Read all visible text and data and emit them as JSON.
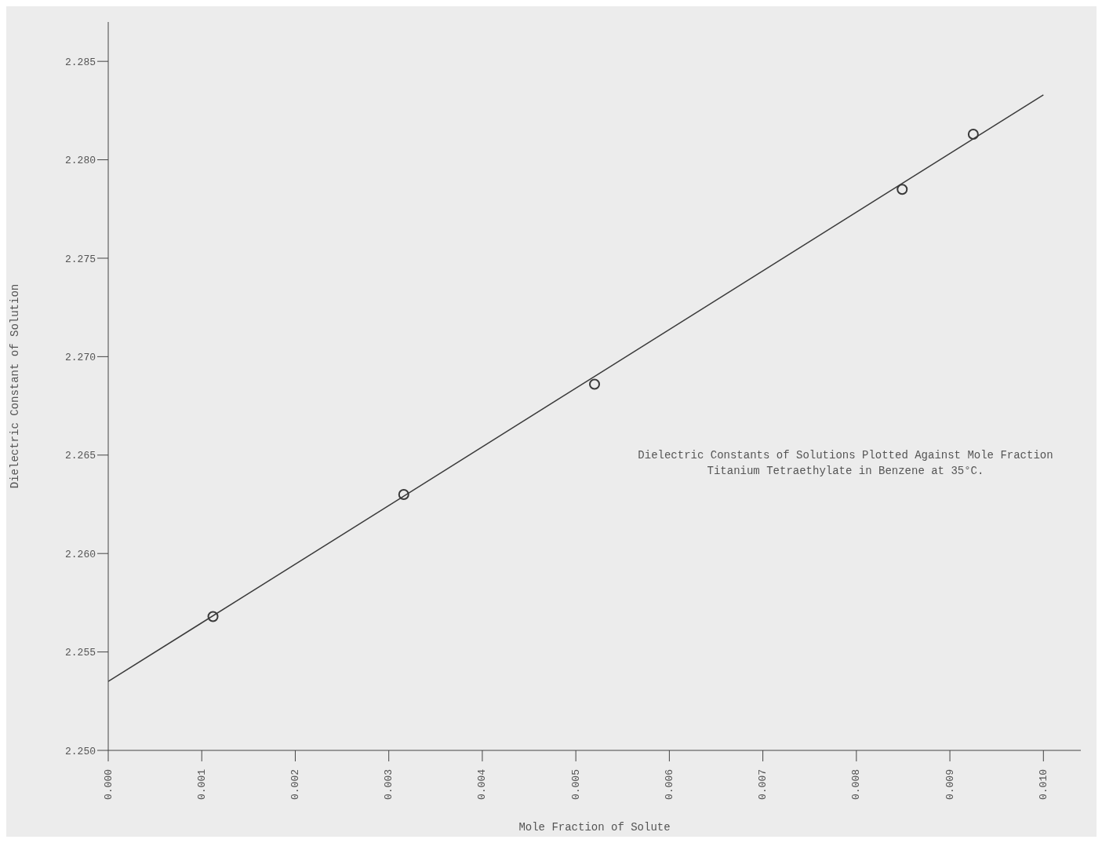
{
  "chart_data": {
    "type": "scatter",
    "xlabel": "Mole Fraction of Solute",
    "ylabel": "Dielectric Constant of Solution",
    "annotations": [
      "Dielectric Constants of Solutions Plotted Against Mole Fraction Titanium Tetraethylate in Benzene at 35°C."
    ],
    "series": [
      {
        "marker": "circle",
        "color": "#3a3a3a",
        "x": [
          0.00112,
          0.00316,
          0.0052,
          0.00849,
          0.00925
        ],
        "values": [
          2.2568,
          2.263,
          2.2686,
          2.2785,
          2.2813
        ]
      },
      {
        "type": "line",
        "color": "#3a3a3a",
        "x": [
          0,
          0.01
        ],
        "values": [
          2.2535,
          2.2833
        ]
      }
    ],
    "line_style": "solid",
    "xlim": [
      0,
      0.0104
    ],
    "ylim": [
      2.25,
      2.287
    ],
    "xticks": [
      {
        "value": 0,
        "label": "0.000"
      },
      {
        "value": 0.001,
        "label": "0.001"
      },
      {
        "value": 0.002,
        "label": "0.002"
      },
      {
        "value": 0.003,
        "label": "0.003"
      },
      {
        "value": 0.004,
        "label": "0.004"
      },
      {
        "value": 0.005,
        "label": "0.005"
      },
      {
        "value": 0.006,
        "label": "0.006"
      },
      {
        "value": 0.007,
        "label": "0.007"
      },
      {
        "value": 0.008,
        "label": "0.008"
      },
      {
        "value": 0.009,
        "label": "0.009"
      },
      {
        "value": 0.01,
        "label": "0.010"
      }
    ],
    "yticks": [
      {
        "value": 2.25,
        "label": "2.250"
      },
      {
        "value": 2.255,
        "label": "2.255"
      },
      {
        "value": 2.26,
        "label": "2.260"
      },
      {
        "value": 2.265,
        "label": "2.265"
      },
      {
        "value": 2.27,
        "label": "2.270"
      },
      {
        "value": 2.275,
        "label": "2.275"
      },
      {
        "value": 2.28,
        "label": "2.280"
      },
      {
        "value": 2.285,
        "label": "2.285"
      }
    ]
  }
}
